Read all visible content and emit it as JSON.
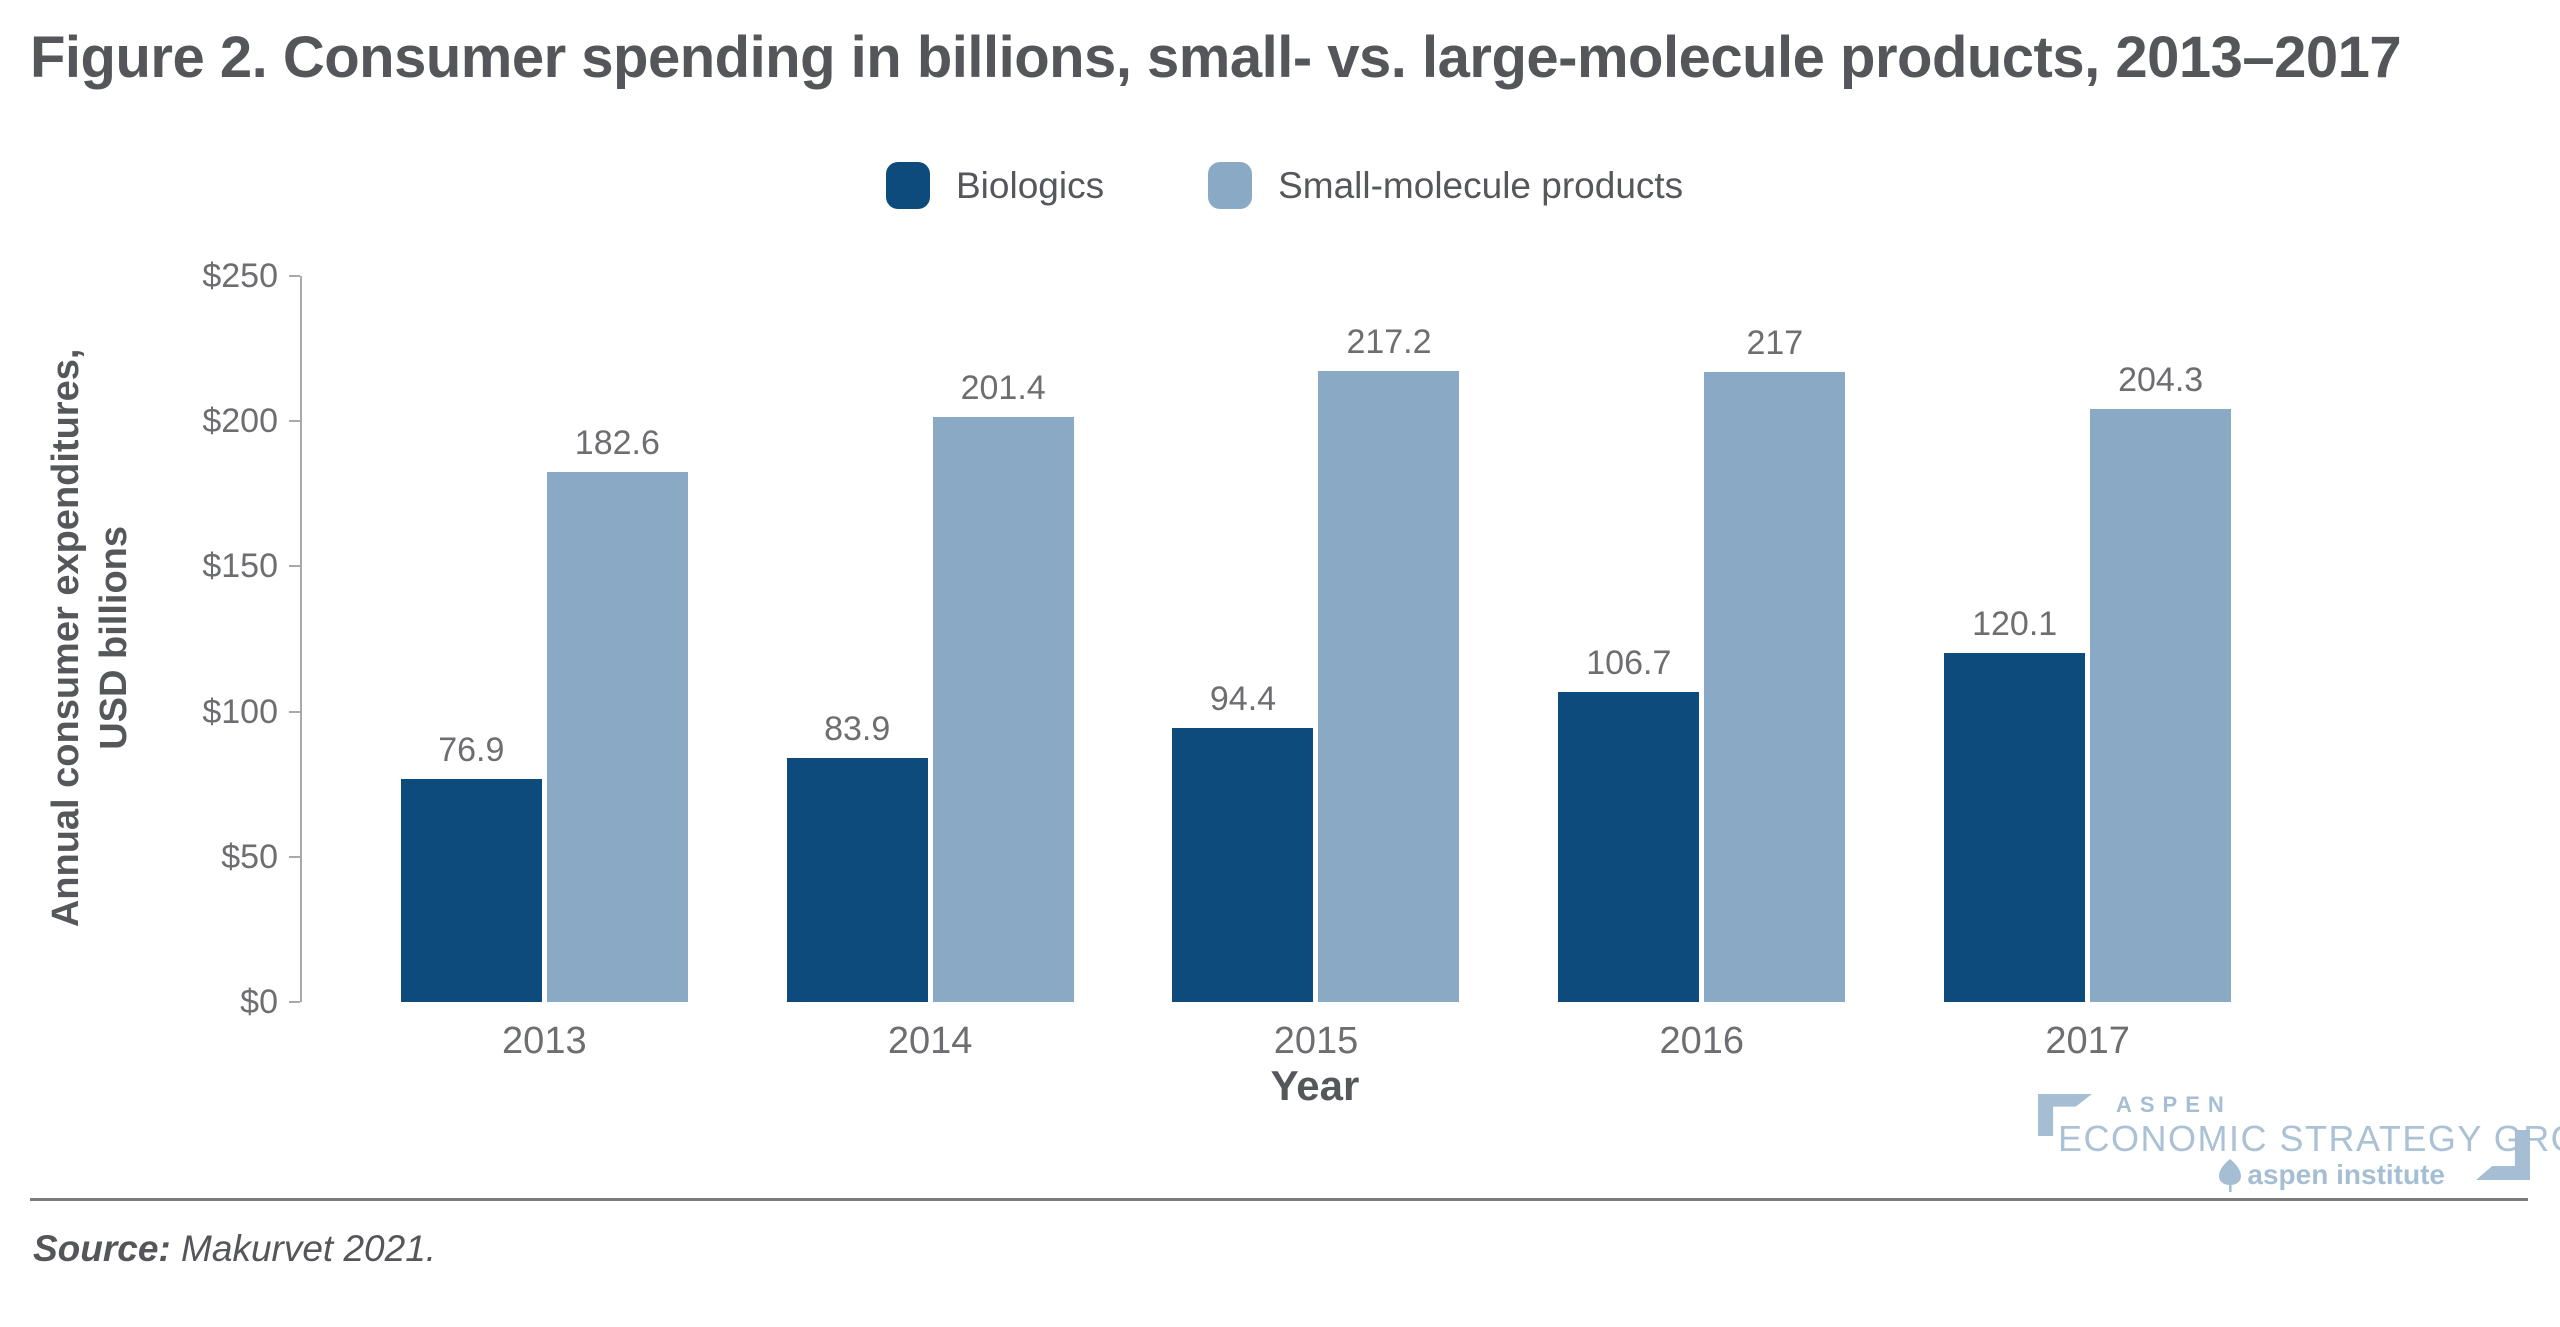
{
  "title": "Figure 2. Consumer spending in billions, small- vs. large-molecule products, 2013–2017",
  "legend": [
    {
      "label": "Biologics",
      "color": "#0c4b7c"
    },
    {
      "label": "Small-molecule products",
      "color": "#8aa9c4"
    }
  ],
  "y_axis": {
    "title_line1": "Annual consumer expenditures,",
    "title_line2": "USD billions"
  },
  "x_axis": {
    "title": "Year"
  },
  "chart_data": {
    "type": "bar",
    "title": "Figure 2. Consumer spending in billions, small- vs. large-molecule products, 2013–2017",
    "categories": [
      "2013",
      "2014",
      "2015",
      "2016",
      "2017"
    ],
    "series": [
      {
        "name": "Biologics",
        "color": "#0c4b7c",
        "values": [
          76.9,
          83.9,
          94.4,
          106.7,
          120.1
        ],
        "labels": [
          "76.9",
          "83.9",
          "94.4",
          "106.7",
          "120.1"
        ]
      },
      {
        "name": "Small-molecule products",
        "color": "#8aa9c4",
        "values": [
          182.6,
          201.4,
          217.2,
          217,
          204.3
        ],
        "labels": [
          "182.6",
          "201.4",
          "217.2",
          "217",
          "204.3"
        ]
      }
    ],
    "xlabel": "Year",
    "ylabel": "Annual consumer expenditures, USD billions",
    "ylim": [
      0,
      250
    ],
    "yticks": [
      {
        "value": 0,
        "label": "$0"
      },
      {
        "value": 50,
        "label": "$50"
      },
      {
        "value": 100,
        "label": "$100"
      },
      {
        "value": 150,
        "label": "$150"
      },
      {
        "value": 200,
        "label": "$200"
      },
      {
        "value": 250,
        "label": "$250"
      }
    ],
    "grid": false,
    "legend_position": "top",
    "value_labels_shown": true
  },
  "branding": {
    "aspen": "ASPEN",
    "group": "ECONOMIC STRATEGY GROUP",
    "institute": "aspen institute"
  },
  "source": {
    "label": "Source:",
    "text": " Makurvet 2021."
  }
}
